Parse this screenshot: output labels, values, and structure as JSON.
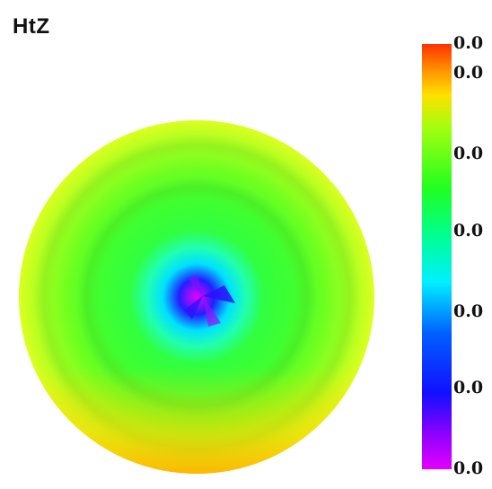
{
  "chart_data": {
    "type": "heatmap",
    "title": "HtZ",
    "colormap": "rainbow (violet → blue → cyan → green → yellow → red)",
    "colorbar": {
      "placement": "right",
      "tick_labels": [
        "0.0",
        "0.0",
        "0.0",
        "0.0",
        "0.0",
        "0.0",
        "0.0"
      ],
      "tick_levels": [
        1.0,
        0.93,
        0.74,
        0.56,
        0.37,
        0.19,
        0.0
      ]
    },
    "surface": {
      "shape": "disc",
      "center_value": 0.0,
      "edge_value": 0.85,
      "profile": [
        {
          "r": 0.0,
          "v": 0.0
        },
        {
          "r": 0.08,
          "v": 0.1
        },
        {
          "r": 0.18,
          "v": 0.28
        },
        {
          "r": 0.28,
          "v": 0.45
        },
        {
          "r": 0.45,
          "v": 0.58
        },
        {
          "r": 0.7,
          "v": 0.68
        },
        {
          "r": 0.88,
          "v": 0.76
        },
        {
          "r": 1.0,
          "v": 0.85
        }
      ]
    },
    "colors": {
      "violet": "#e000ff",
      "blue": "#1a1aff",
      "cyan": "#00f0ff",
      "green": "#22ff22",
      "yellow": "#ffe000",
      "red": "#ff3000"
    }
  }
}
